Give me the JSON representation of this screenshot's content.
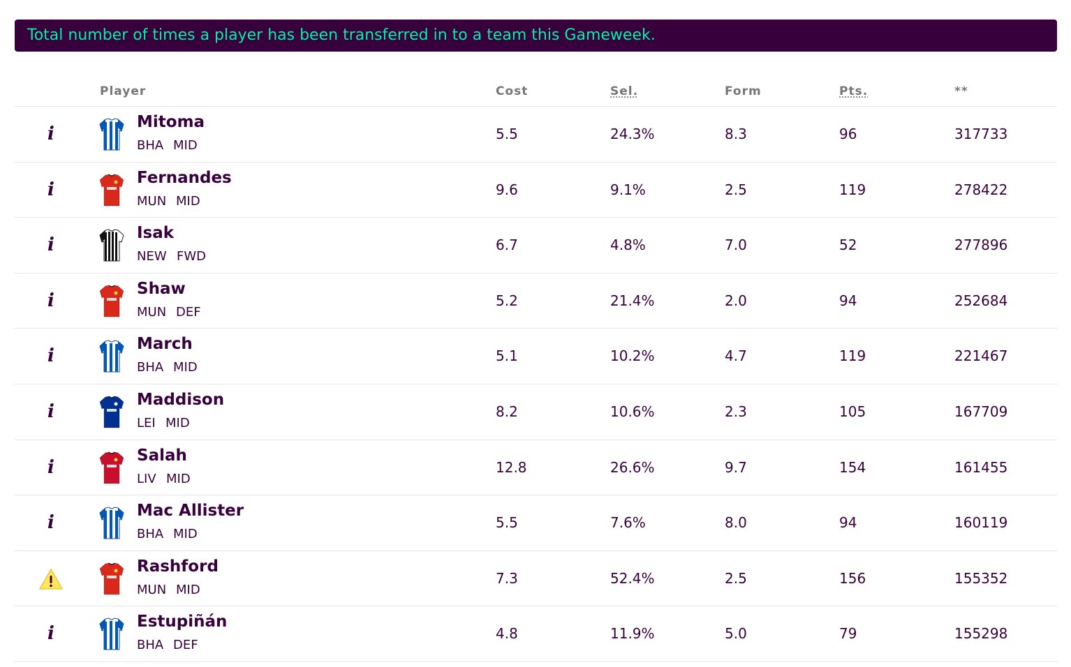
{
  "banner": {
    "text": "Total number of times a player has been transferred in to a team this Gameweek."
  },
  "columns": {
    "player": "Player",
    "cost": "Cost",
    "selected": "Sel.",
    "form": "Form",
    "points": "Pts.",
    "transfers": "**"
  },
  "colors": {
    "brand_purple": "#37003c",
    "banner_text": "#05f0a5",
    "bha_blue": "#0057b8",
    "mun_red": "#da291c",
    "liv_red": "#c8102e",
    "lei_blue": "#003090",
    "warning_yellow": "#ffe65b"
  },
  "players": [
    {
      "name": "Mitoma",
      "team": "BHA",
      "position": "MID",
      "cost": "5.5",
      "selected": "24.3%",
      "form": "8.3",
      "points": "96",
      "transfers_in": "317733",
      "status_icon": "info-icon",
      "shirt": "bha"
    },
    {
      "name": "Fernandes",
      "team": "MUN",
      "position": "MID",
      "cost": "9.6",
      "selected": "9.1%",
      "form": "2.5",
      "points": "119",
      "transfers_in": "278422",
      "status_icon": "info-icon",
      "shirt": "mun"
    },
    {
      "name": "Isak",
      "team": "NEW",
      "position": "FWD",
      "cost": "6.7",
      "selected": "4.8%",
      "form": "7.0",
      "points": "52",
      "transfers_in": "277896",
      "status_icon": "info-icon",
      "shirt": "new"
    },
    {
      "name": "Shaw",
      "team": "MUN",
      "position": "DEF",
      "cost": "5.2",
      "selected": "21.4%",
      "form": "2.0",
      "points": "94",
      "transfers_in": "252684",
      "status_icon": "info-icon",
      "shirt": "mun"
    },
    {
      "name": "March",
      "team": "BHA",
      "position": "MID",
      "cost": "5.1",
      "selected": "10.2%",
      "form": "4.7",
      "points": "119",
      "transfers_in": "221467",
      "status_icon": "info-icon",
      "shirt": "bha"
    },
    {
      "name": "Maddison",
      "team": "LEI",
      "position": "MID",
      "cost": "8.2",
      "selected": "10.6%",
      "form": "2.3",
      "points": "105",
      "transfers_in": "167709",
      "status_icon": "info-icon",
      "shirt": "lei"
    },
    {
      "name": "Salah",
      "team": "LIV",
      "position": "MID",
      "cost": "12.8",
      "selected": "26.6%",
      "form": "9.7",
      "points": "154",
      "transfers_in": "161455",
      "status_icon": "info-icon",
      "shirt": "liv"
    },
    {
      "name": "Mac Allister",
      "team": "BHA",
      "position": "MID",
      "cost": "5.5",
      "selected": "7.6%",
      "form": "8.0",
      "points": "94",
      "transfers_in": "160119",
      "status_icon": "info-icon",
      "shirt": "bha"
    },
    {
      "name": "Rashford",
      "team": "MUN",
      "position": "MID",
      "cost": "7.3",
      "selected": "52.4%",
      "form": "2.5",
      "points": "156",
      "transfers_in": "155352",
      "status_icon": "warning-icon",
      "shirt": "mun"
    },
    {
      "name": "Estupiñán",
      "team": "BHA",
      "position": "DEF",
      "cost": "4.8",
      "selected": "11.9%",
      "form": "5.0",
      "points": "79",
      "transfers_in": "155298",
      "status_icon": "info-icon",
      "shirt": "bha"
    }
  ]
}
